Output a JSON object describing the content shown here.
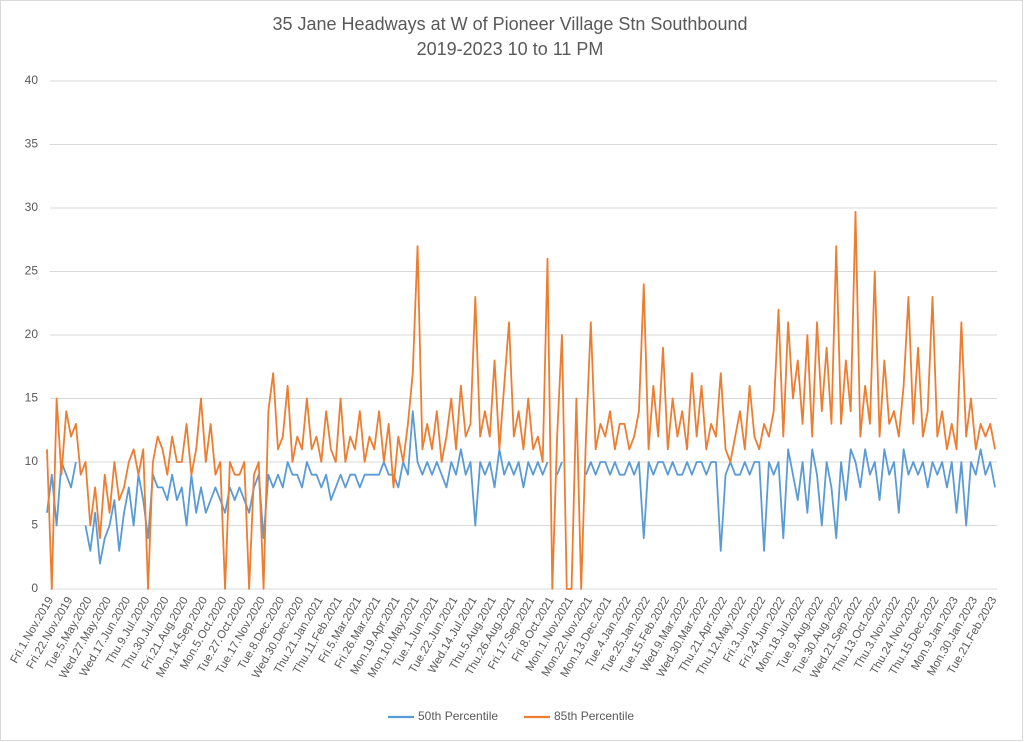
{
  "chart_data": {
    "type": "line",
    "title": "35 Jane Headways at W of Pioneer Village Stn Southbound",
    "subtitle": "2019-2023 10 to 11 PM",
    "categories": [
      "Fri.1.Nov.2019",
      null,
      null,
      null,
      "Fri.22.Nov.2019",
      null,
      null,
      null,
      "Tue.5.May.2020",
      null,
      null,
      null,
      "Wed.27.May.2020",
      null,
      null,
      null,
      "Wed.17.Jun.2020",
      null,
      null,
      null,
      "Thu.9.Jul.2020",
      null,
      null,
      null,
      "Thu.30.Jul.2020",
      null,
      null,
      null,
      "Fri.21.Aug.2020",
      null,
      null,
      null,
      "Mon.14.Sep.2020",
      null,
      null,
      null,
      "Mon.5.Oct.2020",
      null,
      null,
      null,
      "Tue.27.Oct.2020",
      null,
      null,
      null,
      "Tue.17.Nov.2020",
      null,
      null,
      null,
      "Tue.8.Dec.2020",
      null,
      null,
      null,
      "Wed.30.Dec.2020",
      null,
      null,
      null,
      "Thu.21.Jan.2021",
      null,
      null,
      null,
      "Thu.11.Feb.2021",
      null,
      null,
      null,
      "Fri.5.Mar.2021",
      null,
      null,
      null,
      "Fri.26.Mar.2021",
      null,
      null,
      null,
      "Mon.19.Apr.2021",
      null,
      null,
      null,
      "Mon.10.May.2021",
      null,
      null,
      null,
      "Tue.1.Jun.2021",
      null,
      null,
      null,
      "Tue.22.Jun.2021",
      null,
      null,
      null,
      "Wed.14.Jul.2021",
      null,
      null,
      null,
      "Thu.5.Aug.2021",
      null,
      null,
      null,
      "Thu.26.Aug.2021",
      null,
      null,
      null,
      "Fri.17.Sep.2021",
      null,
      null,
      null,
      "Fri.8.Oct.2021",
      null,
      null,
      null,
      "Mon.1.Nov.2021",
      null,
      null,
      null,
      "Mon.22.Nov.2021",
      null,
      null,
      null,
      "Mon.13.Dec.2021",
      null,
      null,
      null,
      "Tue.4.Jan.2022",
      null,
      null,
      null,
      "Tue.25.Jan.2022",
      null,
      null,
      null,
      "Tue.15.Feb.2022",
      null,
      null,
      null,
      "Wed.9.Mar.2022",
      null,
      null,
      null,
      "Wed.30.Mar.2022",
      null,
      null,
      null,
      "Thu.21.Apr.2022",
      null,
      null,
      null,
      "Thu.12.May.2022",
      null,
      null,
      null,
      "Fri.3.Jun.2022",
      null,
      null,
      null,
      "Fri.24.Jun.2022",
      null,
      null,
      null,
      "Mon.18.Jul.2022",
      null,
      null,
      null,
      "Tue.9.Aug.2022",
      null,
      null,
      null,
      "Tue.30.Aug.2022",
      null,
      null,
      null,
      "Wed.21.Sep.2022",
      null,
      null,
      null,
      "Thu.13.Oct.2022",
      null,
      null,
      null,
      "Thu.3.Nov.2022",
      null,
      null,
      null,
      "Thu.24.Nov.2022",
      null,
      null,
      null,
      "Thu.15.Dec.2022",
      null,
      null,
      null,
      "Mon.9.Jan.2023",
      null,
      null,
      null,
      "Mon.30.Jan.2023",
      null,
      null,
      null,
      "Tue.21.Feb.2023",
      null
    ],
    "series": [
      {
        "name": "50th Percentile",
        "color": "#5b9bd5",
        "values": [
          6,
          9,
          5,
          10,
          9,
          8,
          10,
          null,
          5,
          3,
          6,
          2,
          4,
          5,
          7,
          3,
          6,
          8,
          5,
          9,
          7,
          4,
          9,
          8,
          8,
          7,
          9,
          7,
          8,
          5,
          9,
          6,
          8,
          6,
          7,
          8,
          7,
          6,
          8,
          7,
          8,
          7,
          6,
          8,
          9,
          4,
          9,
          8,
          9,
          8,
          10,
          9,
          9,
          8,
          10,
          9,
          9,
          8,
          9,
          7,
          8,
          9,
          8,
          9,
          9,
          8,
          9,
          9,
          9,
          9,
          10,
          9,
          9,
          8,
          10,
          9,
          14,
          10,
          9,
          10,
          9,
          10,
          9,
          8,
          10,
          9,
          11,
          9,
          10,
          5,
          10,
          9,
          10,
          8,
          11,
          9,
          10,
          9,
          10,
          8,
          10,
          9,
          10,
          9,
          10,
          null,
          9,
          10,
          null,
          null,
          10,
          null,
          9,
          10,
          9,
          10,
          10,
          9,
          10,
          9,
          9,
          10,
          9,
          10,
          4,
          10,
          9,
          10,
          10,
          9,
          10,
          9,
          9,
          10,
          9,
          10,
          10,
          9,
          10,
          10,
          3,
          9,
          10,
          9,
          9,
          10,
          9,
          10,
          10,
          3,
          10,
          9,
          10,
          4,
          11,
          9,
          7,
          10,
          6,
          11,
          9,
          5,
          10,
          8,
          4,
          10,
          7,
          11,
          10,
          8,
          11,
          9,
          10,
          7,
          11,
          9,
          10,
          6,
          11,
          9,
          10,
          9,
          10,
          8,
          10,
          9,
          10,
          8,
          10,
          6,
          10,
          5,
          10,
          9,
          11,
          9,
          10,
          8
        ]
      },
      {
        "name": "85th Percentile",
        "color": "#ed7d31",
        "values": [
          11,
          0,
          15,
          9,
          14,
          12,
          13,
          9,
          10,
          5,
          8,
          4,
          9,
          6,
          10,
          7,
          8,
          10,
          11,
          9,
          11,
          0,
          10,
          12,
          11,
          9,
          12,
          10,
          10,
          13,
          9,
          11,
          15,
          10,
          13,
          9,
          10,
          0,
          10,
          9,
          9,
          10,
          0,
          9,
          10,
          0,
          14,
          17,
          11,
          12,
          16,
          10,
          12,
          11,
          15,
          11,
          12,
          10,
          14,
          11,
          10,
          15,
          10,
          12,
          11,
          14,
          10,
          12,
          11,
          14,
          10,
          13,
          8,
          12,
          10,
          13,
          17,
          27,
          11,
          13,
          11,
          14,
          10,
          12,
          15,
          11,
          16,
          12,
          13,
          23,
          12,
          14,
          12,
          18,
          11,
          16,
          21,
          12,
          14,
          11,
          15,
          11,
          12,
          10,
          26,
          0,
          12,
          20,
          0,
          0,
          15,
          0,
          12,
          21,
          11,
          13,
          12,
          14,
          11,
          13,
          13,
          11,
          12,
          14,
          24,
          11,
          16,
          12,
          19,
          11,
          15,
          12,
          14,
          11,
          17,
          12,
          16,
          11,
          13,
          12,
          17,
          11,
          10,
          12,
          14,
          11,
          16,
          12,
          11,
          13,
          12,
          14,
          22,
          12,
          21,
          15,
          18,
          13,
          20,
          12,
          21,
          14,
          19,
          13,
          27,
          13,
          18,
          14,
          29.7,
          12,
          16,
          13,
          25,
          12,
          18,
          13,
          14,
          12,
          16,
          23,
          13,
          19,
          12,
          14,
          23,
          12,
          14,
          11,
          13,
          11,
          21,
          12,
          15,
          11,
          13,
          12,
          13,
          11
        ]
      }
    ],
    "ylim": [
      0,
      40
    ],
    "yticks": [
      0,
      5,
      10,
      15,
      20,
      25,
      30,
      35,
      40
    ],
    "grid": true,
    "legend": "bottom"
  }
}
